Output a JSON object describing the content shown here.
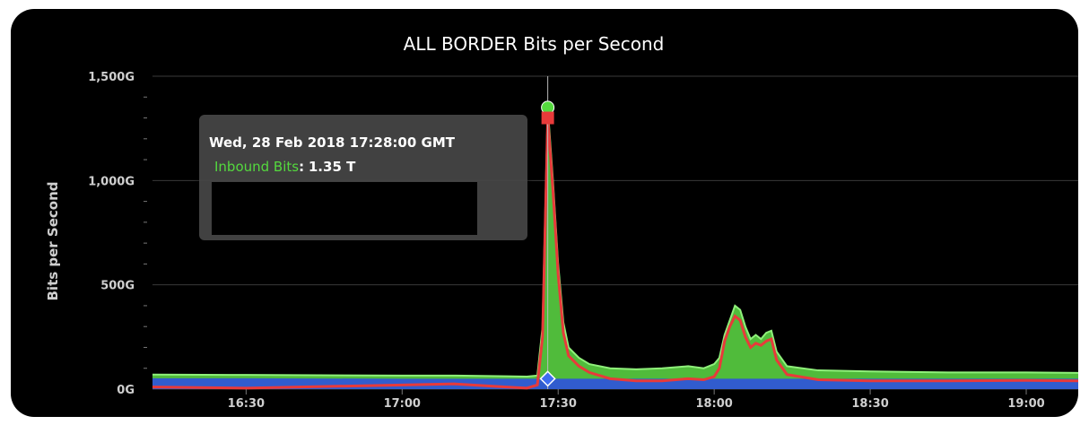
{
  "chart_data": {
    "type": "area",
    "title": "ALL BORDER Bits per Second",
    "xlabel": "",
    "ylabel": "Bits per Second",
    "x_tick_labels": [
      "16:30",
      "17:00",
      "17:30",
      "18:00",
      "18:30",
      "19:00"
    ],
    "y_tick_labels": [
      "0G",
      "500G",
      "1,000G",
      "1,500G"
    ],
    "ylim": [
      0,
      1500
    ],
    "y_unit": "G",
    "grid": true,
    "legend": "none",
    "x": [
      "16:12",
      "16:30",
      "17:00",
      "17:10",
      "17:20",
      "17:24",
      "17:26",
      "17:27",
      "17:28",
      "17:29",
      "17:30",
      "17:31",
      "17:32",
      "17:34",
      "17:36",
      "17:40",
      "17:45",
      "17:50",
      "17:55",
      "17:58",
      "18:00",
      "18:01",
      "18:02",
      "18:03",
      "18:04",
      "18:05",
      "18:06",
      "18:07",
      "18:08",
      "18:09",
      "18:10",
      "18:11",
      "18:12",
      "18:14",
      "18:20",
      "18:30",
      "18:45",
      "19:00",
      "19:10"
    ],
    "series": [
      {
        "name": "Inbound Bits",
        "color": "#54d93e",
        "fill": "#54c53e",
        "values": [
          70,
          68,
          65,
          65,
          62,
          60,
          65,
          300,
          1350,
          1000,
          600,
          320,
          200,
          150,
          120,
          100,
          95,
          100,
          110,
          100,
          120,
          150,
          260,
          330,
          400,
          380,
          300,
          240,
          260,
          240,
          270,
          280,
          180,
          110,
          90,
          85,
          80,
          80,
          78
        ]
      },
      {
        "name": "",
        "color": "#e83a3a",
        "values": [
          10,
          5,
          20,
          25,
          10,
          5,
          20,
          250,
          1300,
          950,
          550,
          270,
          160,
          110,
          80,
          50,
          40,
          40,
          50,
          45,
          60,
          100,
          230,
          300,
          350,
          330,
          250,
          200,
          220,
          210,
          230,
          240,
          140,
          70,
          45,
          40,
          40,
          42,
          40
        ]
      },
      {
        "name": "",
        "color": "#2f56d6",
        "values": [
          52,
          52,
          50,
          50,
          50,
          50,
          50,
          50,
          50,
          50,
          50,
          50,
          50,
          50,
          50,
          50,
          50,
          50,
          50,
          50,
          50,
          50,
          50,
          50,
          50,
          50,
          50,
          50,
          50,
          50,
          50,
          50,
          50,
          50,
          50,
          50,
          50,
          50,
          50
        ]
      }
    ],
    "highlight": {
      "x": "17:28",
      "series": "Inbound Bits",
      "value_label": "1.35 T"
    }
  },
  "tooltip": {
    "date": "Wed, 28 Feb 2018 17:28:00 GMT",
    "series_label": "Inbound Bits",
    "separator": ":",
    "value": "1.35 T"
  }
}
